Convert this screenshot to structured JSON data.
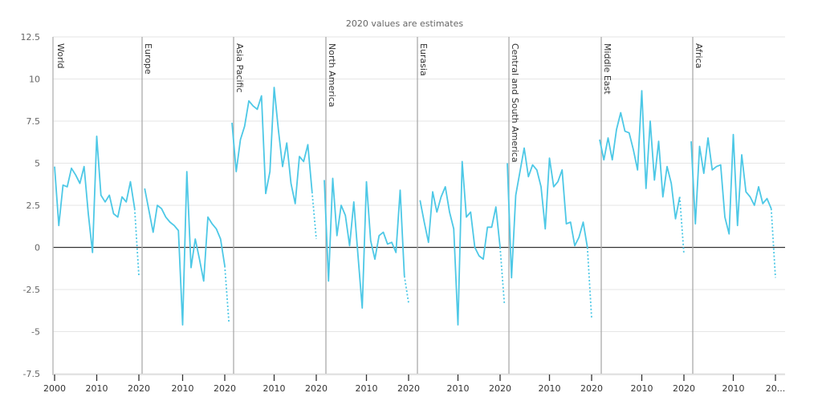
{
  "chart_data": {
    "type": "line",
    "title": "",
    "note": "2020 values are estimates",
    "xlabel": "",
    "ylabel": "",
    "ylim": [
      -7.5,
      12.5
    ],
    "yticks": [
      "12.5",
      "10",
      "7.5",
      "5",
      "2.5",
      "0",
      "-2.5",
      "-5",
      "-7.5"
    ],
    "xrange": [
      2000,
      2020
    ],
    "xtick_labels": [
      "2000",
      "2010",
      "2020",
      "2010",
      "2020",
      "2010",
      "2020",
      "2010",
      "2020",
      "2010",
      "2020",
      "2010",
      "2020",
      "2010",
      "2020",
      "2010",
      "20..."
    ],
    "grid": true,
    "line_color": "#4dc8e6",
    "estimate_style": "dotted",
    "panels": [
      {
        "name": "World",
        "start_year": 2000,
        "values": [
          4.8,
          1.3,
          3.7,
          3.6,
          4.7,
          4.3,
          3.8,
          4.8,
          2.0,
          -0.3,
          6.6,
          3.1,
          2.7,
          3.1,
          2.0,
          1.8,
          3.0,
          2.7,
          3.9,
          2.3,
          -1.7
        ]
      },
      {
        "name": "Europe",
        "start_year": 2001,
        "values": [
          3.5,
          2.2,
          0.9,
          2.5,
          2.3,
          1.8,
          1.5,
          1.3,
          1.0,
          -4.6,
          4.5,
          -1.2,
          0.5,
          -0.7,
          -2.0,
          1.8,
          1.4,
          1.1,
          0.5,
          -1.1,
          -4.5
        ]
      },
      {
        "name": "Asia Pacific",
        "start_year": 2000,
        "values": [
          7.4,
          4.5,
          6.4,
          7.2,
          8.7,
          8.4,
          8.2,
          9.0,
          3.2,
          4.5,
          9.5,
          7.0,
          4.8,
          6.2,
          3.8,
          2.6,
          5.4,
          5.1,
          6.1,
          3.3,
          0.5
        ]
      },
      {
        "name": "North America",
        "start_year": 2000,
        "values": [
          4.0,
          -2.0,
          4.1,
          0.7,
          2.5,
          1.9,
          0.1,
          2.7,
          -0.5,
          -3.6,
          3.9,
          0.4,
          -0.7,
          0.7,
          0.9,
          0.2,
          0.3,
          -0.3,
          3.4,
          -1.7,
          -3.3
        ]
      },
      {
        "name": "Eurasia",
        "start_year": 2001,
        "values": [
          2.8,
          1.5,
          0.3,
          3.3,
          2.1,
          3.0,
          3.6,
          2.1,
          1.1,
          -4.6,
          5.1,
          1.8,
          2.1,
          0.0,
          -0.5,
          -0.7,
          1.2,
          1.2,
          2.4,
          0.0,
          -3.3
        ]
      },
      {
        "name": "Central and South America",
        "start_year": 2000,
        "values": [
          5.0,
          -1.8,
          3.1,
          4.5,
          5.9,
          4.2,
          4.9,
          4.6,
          3.6,
          1.1,
          5.3,
          3.6,
          3.9,
          4.6,
          1.4,
          1.5,
          0.1,
          0.6,
          1.5,
          0.0,
          -4.2
        ]
      },
      {
        "name": "Middle East",
        "start_year": 2000,
        "values": [
          6.4,
          5.2,
          6.5,
          5.2,
          7.0,
          8.0,
          6.9,
          6.8,
          5.8,
          4.6,
          9.3,
          3.5,
          7.5,
          4.0,
          6.3,
          3.0,
          4.8,
          3.8,
          1.7,
          3.0,
          -0.4
        ]
      },
      {
        "name": "Africa",
        "start_year": 2000,
        "values": [
          6.3,
          1.4,
          6.0,
          4.4,
          6.5,
          4.6,
          4.8,
          4.9,
          1.8,
          0.8,
          6.7,
          1.3,
          5.5,
          3.3,
          3.0,
          2.5,
          3.6,
          2.6,
          2.9,
          2.3,
          -1.8
        ]
      }
    ]
  }
}
